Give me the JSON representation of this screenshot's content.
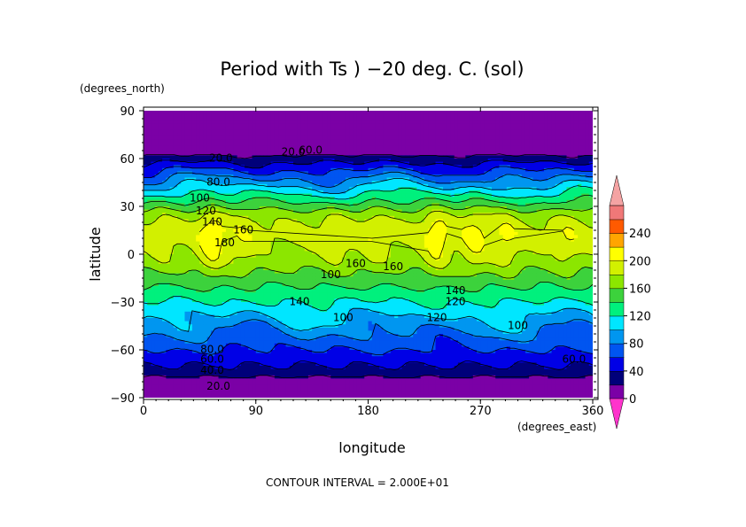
{
  "chart_data": {
    "type": "heatmap",
    "title": "Period with Ts ) −20 deg. C. (sol)",
    "xlabel": "longitude",
    "ylabel": "latitude",
    "x_units": "(degrees_east)",
    "y_units": "(degrees_north)",
    "xlim": [
      0,
      360
    ],
    "ylim": [
      -90,
      90
    ],
    "x_ticks": [
      "0",
      "90",
      "180",
      "270",
      "360"
    ],
    "y_ticks": [
      "90",
      "60",
      "30",
      "0",
      "−30",
      "−60",
      "−90"
    ],
    "contour_interval_text": "CONTOUR INTERVAL = 2.000E+01",
    "colorbar": {
      "levels": [
        0,
        20,
        40,
        60,
        80,
        100,
        120,
        140,
        160,
        180,
        200,
        220,
        240,
        260
      ],
      "tick_labels": [
        "0",
        "40",
        "80",
        "120",
        "160",
        "200",
        "240"
      ],
      "colors": [
        "#7b00a6",
        "#00007a",
        "#0000e6",
        "#0055f0",
        "#0096f0",
        "#00e6ff",
        "#00f07d",
        "#3cd23c",
        "#8ce600",
        "#d2f000",
        "#ffff00",
        "#ffa500",
        "#ff5a00",
        "#f07878"
      ],
      "under_color": "#ff33cc",
      "over_color": "#f4a3a3"
    },
    "contour_labels": [
      "20.0",
      "60.0",
      "20.0",
      "80.0",
      "100",
      "120",
      "140",
      "160",
      "180",
      "100",
      "160",
      "160",
      "140",
      "120",
      "120",
      "100",
      "140",
      "80.0",
      "60.0",
      "40.0",
      "20.0",
      "100",
      "60.0"
    ],
    "latitude_profile": [
      {
        "lat": 90,
        "value": 0
      },
      {
        "lat": 85,
        "value": 0
      },
      {
        "lat": 75,
        "value": 0
      },
      {
        "lat": 65,
        "value": 10
      },
      {
        "lat": 60,
        "value": 30
      },
      {
        "lat": 55,
        "value": 50
      },
      {
        "lat": 50,
        "value": 70
      },
      {
        "lat": 45,
        "value": 90
      },
      {
        "lat": 40,
        "value": 110
      },
      {
        "lat": 35,
        "value": 130
      },
      {
        "lat": 30,
        "value": 150
      },
      {
        "lat": 25,
        "value": 170
      },
      {
        "lat": 20,
        "value": 180
      },
      {
        "lat": 15,
        "value": 185
      },
      {
        "lat": 10,
        "value": 185
      },
      {
        "lat": 5,
        "value": 180
      },
      {
        "lat": 0,
        "value": 175
      },
      {
        "lat": -5,
        "value": 170
      },
      {
        "lat": -10,
        "value": 160
      },
      {
        "lat": -15,
        "value": 150
      },
      {
        "lat": -20,
        "value": 140
      },
      {
        "lat": -25,
        "value": 130
      },
      {
        "lat": -30,
        "value": 120
      },
      {
        "lat": -35,
        "value": 110
      },
      {
        "lat": -40,
        "value": 100
      },
      {
        "lat": -45,
        "value": 90
      },
      {
        "lat": -50,
        "value": 80
      },
      {
        "lat": -55,
        "value": 70
      },
      {
        "lat": -60,
        "value": 60
      },
      {
        "lat": -65,
        "value": 50
      },
      {
        "lat": -70,
        "value": 40
      },
      {
        "lat": -75,
        "value": 30
      },
      {
        "lat": -80,
        "value": 10
      },
      {
        "lat": -85,
        "value": 0
      },
      {
        "lat": -90,
        "value": 0
      }
    ],
    "longitude_peaks": [
      {
        "lon": 15,
        "amp": 10
      },
      {
        "lon": 55,
        "amp": 35
      },
      {
        "lon": 80,
        "amp": 15
      },
      {
        "lon": 155,
        "amp": 15
      },
      {
        "lon": 185,
        "amp": 15
      },
      {
        "lon": 235,
        "amp": 30
      },
      {
        "lon": 265,
        "amp": 25
      },
      {
        "lon": 290,
        "amp": 20
      },
      {
        "lon": 340,
        "amp": 15
      }
    ]
  }
}
